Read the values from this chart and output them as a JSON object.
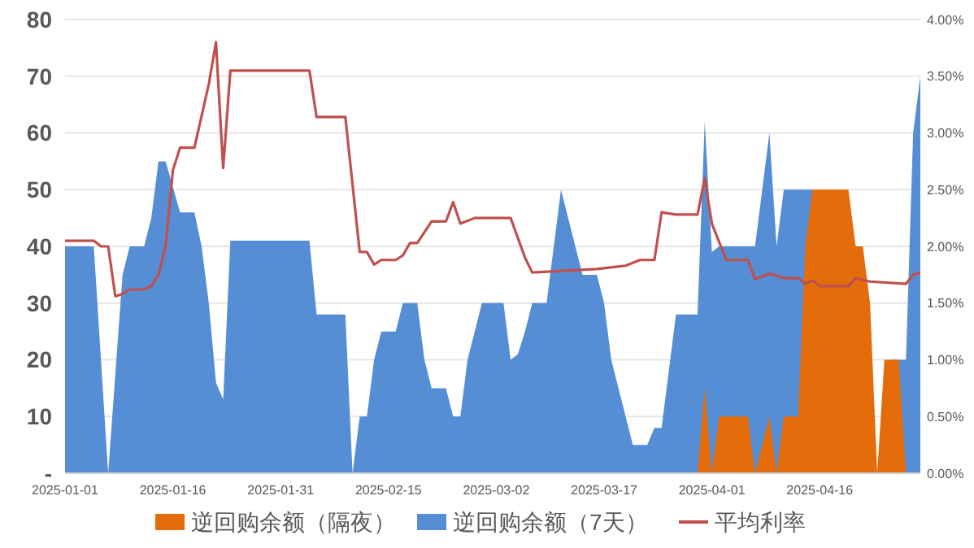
{
  "chart_data": {
    "type": "area",
    "xlim": [
      "2025-01-01",
      "2025-04-30"
    ],
    "xticks": [
      {
        "value": "2025-01-01",
        "label": "2025-01-01"
      },
      {
        "value": "2025-01-16",
        "label": "2025-01-16"
      },
      {
        "value": "2025-01-31",
        "label": "2025-01-31"
      },
      {
        "value": "2025-02-15",
        "label": "2025-02-15"
      },
      {
        "value": "2025-03-02",
        "label": "2025-03-02"
      },
      {
        "value": "2025-03-17",
        "label": "2025-03-17"
      },
      {
        "value": "2025-04-01",
        "label": "2025-04-01"
      },
      {
        "value": "2025-04-16",
        "label": "2025-04-16"
      }
    ],
    "ylim": [
      0,
      80
    ],
    "yticks": [
      {
        "value": 0,
        "label": "-"
      },
      10,
      20,
      30,
      40,
      50,
      60,
      70,
      80
    ],
    "y2lim": [
      0,
      4
    ],
    "y2ticks": [
      {
        "value": 0,
        "label": "0.00%"
      },
      {
        "value": 0.5,
        "label": "0.50%"
      },
      {
        "value": 1,
        "label": "1.00%"
      },
      {
        "value": 1.5,
        "label": "1.50%"
      },
      {
        "value": 2,
        "label": "2.00%"
      },
      {
        "value": 2.5,
        "label": "2.50%"
      },
      {
        "value": 3,
        "label": "3.00%"
      },
      {
        "value": 3.5,
        "label": "3.50%"
      },
      {
        "value": 4,
        "label": "4.00%"
      }
    ],
    "grid": "y",
    "legend": "bottom",
    "series": [
      {
        "name": "逆回购余额（隔夜）",
        "color": "#e46c0a",
        "x": [
          "2025-01-01",
          "2025-03-30",
          "2025-03-31",
          "2025-04-01",
          "2025-04-02",
          "2025-04-06",
          "2025-04-07",
          "2025-04-09",
          "2025-04-10",
          "2025-04-11",
          "2025-04-13",
          "2025-04-14",
          "2025-04-15",
          "2025-04-20",
          "2025-04-21",
          "2025-04-22",
          "2025-04-23",
          "2025-04-24",
          "2025-04-25",
          "2025-04-27",
          "2025-04-28",
          "2025-04-30"
        ],
        "values": [
          0,
          0,
          15,
          0,
          10,
          10,
          0,
          10,
          0,
          10,
          10,
          40,
          50,
          50,
          40,
          40,
          30,
          0,
          20,
          20,
          0,
          0
        ]
      },
      {
        "name": "逆回购余额（7天）",
        "color": "#558ed5",
        "x": [
          "2025-01-01",
          "2025-01-05",
          "2025-01-07",
          "2025-01-09",
          "2025-01-10",
          "2025-01-12",
          "2025-01-13",
          "2025-01-14",
          "2025-01-15",
          "2025-01-17",
          "2025-01-19",
          "2025-01-20",
          "2025-01-21",
          "2025-01-22",
          "2025-01-23",
          "2025-01-24",
          "2025-02-04",
          "2025-02-05",
          "2025-02-09",
          "2025-02-10",
          "2025-02-11",
          "2025-02-12",
          "2025-02-13",
          "2025-02-14",
          "2025-02-16",
          "2025-02-17",
          "2025-02-19",
          "2025-02-20",
          "2025-02-21",
          "2025-02-23",
          "2025-02-24",
          "2025-02-25",
          "2025-02-26",
          "2025-02-27",
          "2025-02-28",
          "2025-03-03",
          "2025-03-04",
          "2025-03-05",
          "2025-03-06",
          "2025-03-07",
          "2025-03-09",
          "2025-03-11",
          "2025-03-13",
          "2025-03-14",
          "2025-03-16",
          "2025-03-17",
          "2025-03-18",
          "2025-03-20",
          "2025-03-21",
          "2025-03-23",
          "2025-03-24",
          "2025-03-25",
          "2025-03-27",
          "2025-03-30",
          "2025-03-31",
          "2025-04-01",
          "2025-04-02",
          "2025-04-07",
          "2025-04-09",
          "2025-04-10",
          "2025-04-11",
          "2025-04-15",
          "2025-04-24",
          "2025-04-26",
          "2025-04-28",
          "2025-04-29",
          "2025-04-30"
        ],
        "values": [
          40,
          40,
          0,
          35,
          40,
          40,
          45,
          55,
          55,
          46,
          46,
          40,
          30,
          16,
          13,
          41,
          41,
          28,
          28,
          0,
          10,
          10,
          20,
          25,
          25,
          30,
          30,
          20,
          15,
          15,
          10,
          10,
          20,
          25,
          30,
          30,
          20,
          21,
          25,
          30,
          30,
          50,
          40,
          35,
          35,
          30,
          20,
          10,
          5,
          5,
          8,
          8,
          28,
          28,
          62,
          39,
          40,
          40,
          60,
          40,
          50,
          50,
          0,
          20,
          20,
          60,
          70
        ]
      },
      {
        "name": "平均利率",
        "type": "line",
        "axis": "y2",
        "color": "#c0504d",
        "x": [
          "2025-01-01",
          "2025-01-05",
          "2025-01-06",
          "2025-01-07",
          "2025-01-08",
          "2025-01-09",
          "2025-01-10",
          "2025-01-12",
          "2025-01-13",
          "2025-01-14",
          "2025-01-15",
          "2025-01-16",
          "2025-01-17",
          "2025-01-19",
          "2025-01-21",
          "2025-01-22",
          "2025-01-23",
          "2025-01-24",
          "2025-02-04",
          "2025-02-05",
          "2025-02-09",
          "2025-02-11",
          "2025-02-12",
          "2025-02-13",
          "2025-02-14",
          "2025-02-16",
          "2025-02-17",
          "2025-02-18",
          "2025-02-19",
          "2025-02-21",
          "2025-02-23",
          "2025-02-24",
          "2025-02-25",
          "2025-02-27",
          "2025-03-04",
          "2025-03-06",
          "2025-03-07",
          "2025-03-16",
          "2025-03-20",
          "2025-03-22",
          "2025-03-24",
          "2025-03-25",
          "2025-03-27",
          "2025-03-30",
          "2025-03-31",
          "2025-04-01",
          "2025-04-03",
          "2025-04-06",
          "2025-04-07",
          "2025-04-09",
          "2025-04-11",
          "2025-04-13",
          "2025-04-14",
          "2025-04-15",
          "2025-04-16",
          "2025-04-20",
          "2025-04-21",
          "2025-04-23",
          "2025-04-28",
          "2025-04-29",
          "2025-04-30"
        ],
        "values": [
          2.05,
          2.05,
          2.0,
          2.0,
          1.56,
          1.58,
          1.62,
          1.62,
          1.65,
          1.75,
          2.0,
          2.67,
          2.87,
          2.87,
          3.43,
          3.8,
          2.69,
          3.55,
          3.55,
          3.14,
          3.14,
          1.95,
          1.95,
          1.84,
          1.88,
          1.88,
          1.92,
          2.03,
          2.03,
          2.22,
          2.22,
          2.39,
          2.2,
          2.25,
          2.25,
          1.9,
          1.77,
          1.8,
          1.83,
          1.88,
          1.88,
          2.3,
          2.28,
          2.28,
          2.6,
          2.2,
          1.88,
          1.88,
          1.71,
          1.76,
          1.72,
          1.72,
          1.67,
          1.7,
          1.65,
          1.65,
          1.72,
          1.69,
          1.67,
          1.75,
          1.77
        ]
      }
    ]
  }
}
